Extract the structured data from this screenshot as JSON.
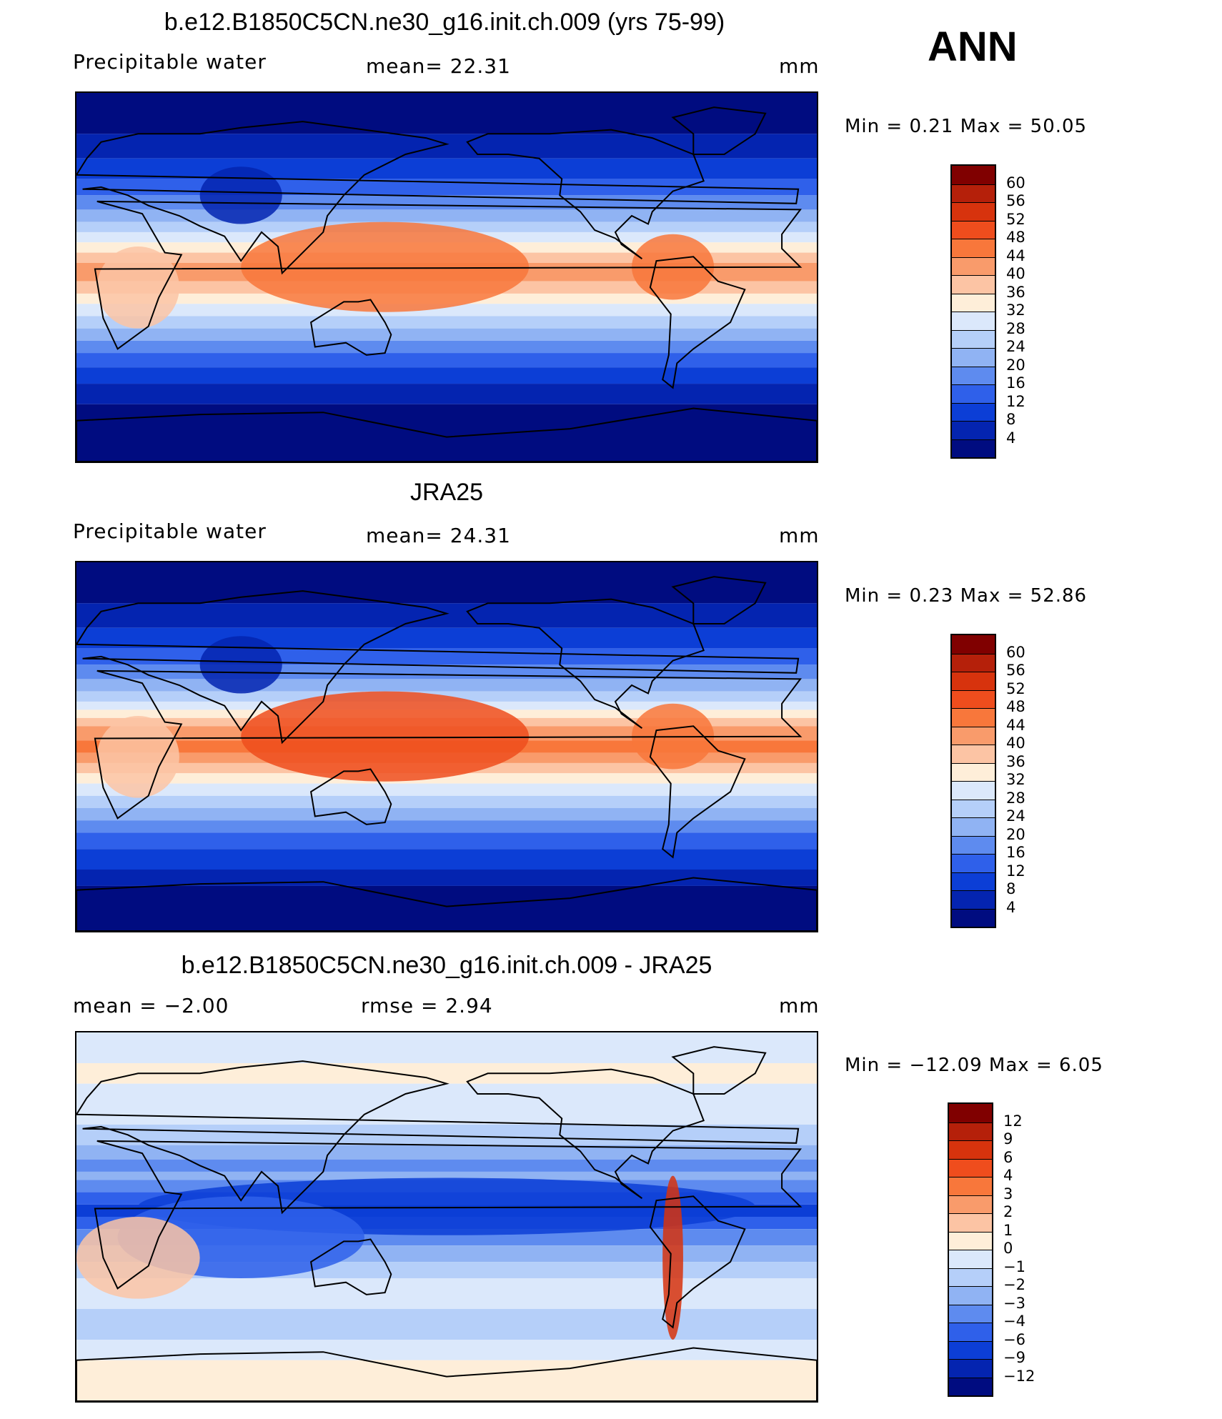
{
  "season": "ANN",
  "panels": [
    {
      "title": "b.e12.B1850C5CN.ne30_g16.init.ch.009 (yrs 75-99)",
      "left_label": "Precipitable  water",
      "center_label": "mean=   22.31",
      "units": "mm",
      "stats": "Min  =      0.21  Max  =     50.05",
      "field": "model",
      "colorbar_labels": [
        "60",
        "56",
        "52",
        "48",
        "44",
        "40",
        "36",
        "32",
        "28",
        "24",
        "20",
        "16",
        "12",
        "8",
        "4"
      ]
    },
    {
      "title": "JRA25",
      "left_label": "Precipitable  water",
      "center_label": "mean=   24.31",
      "units": "mm",
      "stats": "Min  =      0.23  Max  =     52.86",
      "field": "obs",
      "colorbar_labels": [
        "60",
        "56",
        "52",
        "48",
        "44",
        "40",
        "36",
        "32",
        "28",
        "24",
        "20",
        "16",
        "12",
        "8",
        "4"
      ]
    },
    {
      "title": "b.e12.B1850C5CN.ne30_g16.init.ch.009 - JRA25",
      "left_label": "mean  =    −2.00",
      "center_label": "rmse  =      2.94",
      "units": "mm",
      "stats": "Min  =  −12.09  Max  =      6.05",
      "field": "diff",
      "colorbar_labels": [
        "12",
        "9",
        "6",
        "4",
        "3",
        "2",
        "1",
        "0",
        "−1",
        "−2",
        "−3",
        "−4",
        "−6",
        "−9",
        "−12"
      ]
    }
  ],
  "colors": {
    "abs_scale": [
      "#800000",
      "#b5200a",
      "#d7330d",
      "#ef4d1d",
      "#f8773b",
      "#f99b6b",
      "#fcc4a4",
      "#feeed9",
      "#dbe8fb",
      "#b5cff9",
      "#90b3f3",
      "#5e8bef",
      "#2f60ea",
      "#0c3ed6",
      "#0424b0",
      "#000c80"
    ],
    "diff_scale": [
      "#800000",
      "#b5200a",
      "#d7330d",
      "#ef4d1d",
      "#f8773b",
      "#f99b6b",
      "#fcc4a4",
      "#feeed9",
      "#dbe8fb",
      "#b5cff9",
      "#90b3f3",
      "#5e8bef",
      "#2f60ea",
      "#0c3ed6",
      "#0424b0",
      "#000c80"
    ]
  }
}
